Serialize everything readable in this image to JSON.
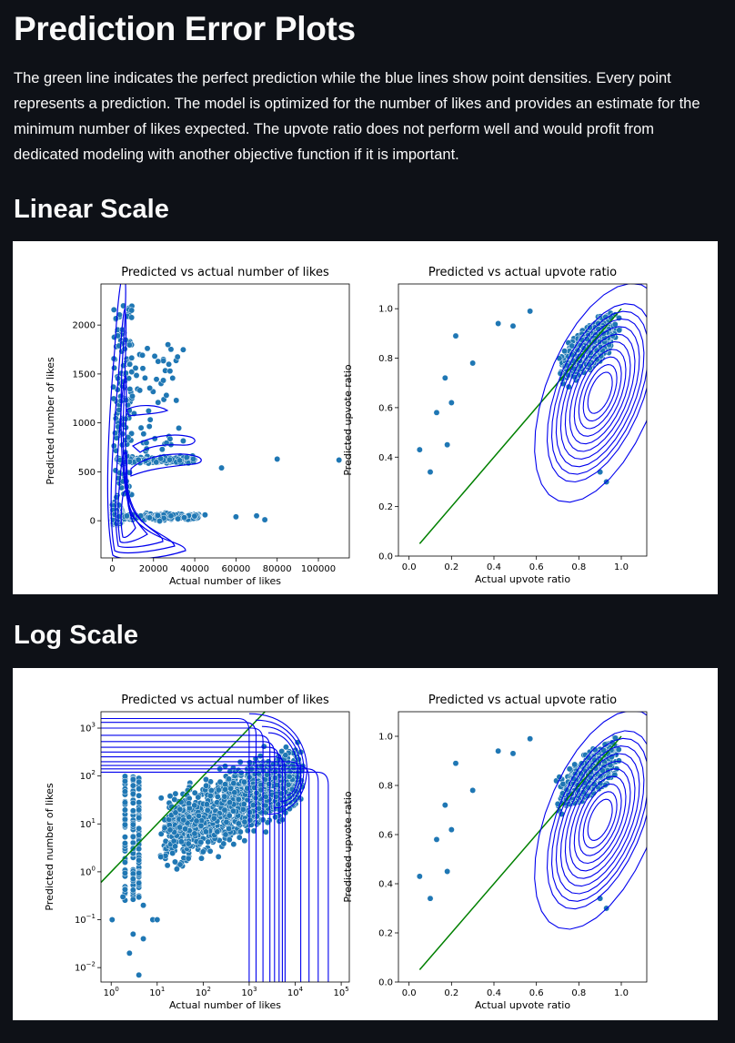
{
  "page": {
    "title": "Prediction Error Plots",
    "intro": "The green line indicates the perfect prediction while the blue lines show point densities. Every point represents a prediction. The model is optimized for the number of likes and provides an estimate for the minimum number of likes expected. The upvote ratio does not perform well and would profit from dedicated modeling with another objective function if it is important.",
    "sections": [
      {
        "title": "Linear Scale"
      },
      {
        "title": "Log Scale"
      }
    ]
  },
  "colors": {
    "background": "#0e1117",
    "text": "#fafafa",
    "points": "#1f77b4",
    "density": "#0000ee",
    "perfect_line": "#008000"
  },
  "chart_data": [
    {
      "id": "linear-likes",
      "type": "scatter",
      "title": "Predicted vs actual number of likes",
      "xlabel": "Actual number of likes",
      "ylabel": "Predicted number of likes",
      "xscale": "linear",
      "yscale": "linear",
      "xlim": [
        -5500,
        115000
      ],
      "ylim": [
        -380,
        2420
      ],
      "xticks": [
        0,
        20000,
        40000,
        60000,
        80000,
        100000
      ],
      "xticklabels": [
        "0",
        "20000",
        "40000",
        "60000",
        "80000",
        "100000"
      ],
      "yticks": [
        0,
        500,
        1000,
        1500,
        2000
      ],
      "yticklabels": [
        "0",
        "500",
        "1000",
        "1500",
        "2000"
      ],
      "grid": false,
      "overlays": [
        "kde density contours"
      ]
    },
    {
      "id": "linear-upvote",
      "type": "scatter",
      "title": "Predicted vs actual upvote ratio",
      "xlabel": "Actual upvote ratio",
      "ylabel": "Predicted upvote ratio",
      "xscale": "linear",
      "yscale": "linear",
      "xlim": [
        -0.05,
        1.12
      ],
      "ylim": [
        0,
        1.1
      ],
      "xticks": [
        0.0,
        0.2,
        0.4,
        0.6,
        0.8,
        1.0
      ],
      "xticklabels": [
        "0.0",
        "0.2",
        "0.4",
        "0.6",
        "0.8",
        "1.0"
      ],
      "yticks": [
        0.0,
        0.2,
        0.4,
        0.6,
        0.8,
        1.0
      ],
      "yticklabels": [
        "0.0",
        "0.2",
        "0.4",
        "0.6",
        "0.8",
        "1.0"
      ],
      "grid": false,
      "perfect_prediction_line": {
        "x": [
          0.05,
          1.0
        ],
        "y": [
          0.05,
          1.0
        ]
      },
      "overlays": [
        "kde density contours"
      ]
    },
    {
      "id": "log-likes",
      "type": "scatter",
      "title": "Predicted vs actual number of likes",
      "xlabel": "Actual number of likes",
      "ylabel": "Predicted number of likes",
      "xscale": "log",
      "yscale": "log",
      "xlim": [
        0.6,
        150000
      ],
      "ylim": [
        0.005,
        2200
      ],
      "xticks": [
        1,
        10,
        100,
        1000,
        10000,
        100000
      ],
      "xticklabels": [
        "10^0",
        "10^1",
        "10^2",
        "10^3",
        "10^4",
        "10^5"
      ],
      "yticks": [
        0.01,
        0.1,
        1,
        10,
        100,
        1000
      ],
      "yticklabels": [
        "10^-2",
        "10^-1",
        "10^0",
        "10^1",
        "10^2",
        "10^3"
      ],
      "grid": false,
      "perfect_prediction_line": {
        "x": [
          0.6,
          2200
        ],
        "y": [
          0.6,
          2200
        ]
      },
      "overlays": [
        "kde density contours"
      ]
    },
    {
      "id": "log-upvote",
      "type": "scatter",
      "title": "Predicted vs actual upvote ratio",
      "xlabel": "Actual upvote ratio",
      "ylabel": "Predicted upvote ratio",
      "xscale": "linear",
      "yscale": "linear",
      "xlim": [
        -0.05,
        1.12
      ],
      "ylim": [
        0,
        1.1
      ],
      "xticks": [
        0.0,
        0.2,
        0.4,
        0.6,
        0.8,
        1.0
      ],
      "xticklabels": [
        "0.0",
        "0.2",
        "0.4",
        "0.6",
        "0.8",
        "1.0"
      ],
      "yticks": [
        0.0,
        0.2,
        0.4,
        0.6,
        0.8,
        1.0
      ],
      "yticklabels": [
        "0.0",
        "0.2",
        "0.4",
        "0.6",
        "0.8",
        "1.0"
      ],
      "grid": false,
      "perfect_prediction_line": {
        "x": [
          0.05,
          1.0
        ],
        "y": [
          0.05,
          1.0
        ]
      },
      "overlays": [
        "kde density contours"
      ]
    }
  ]
}
